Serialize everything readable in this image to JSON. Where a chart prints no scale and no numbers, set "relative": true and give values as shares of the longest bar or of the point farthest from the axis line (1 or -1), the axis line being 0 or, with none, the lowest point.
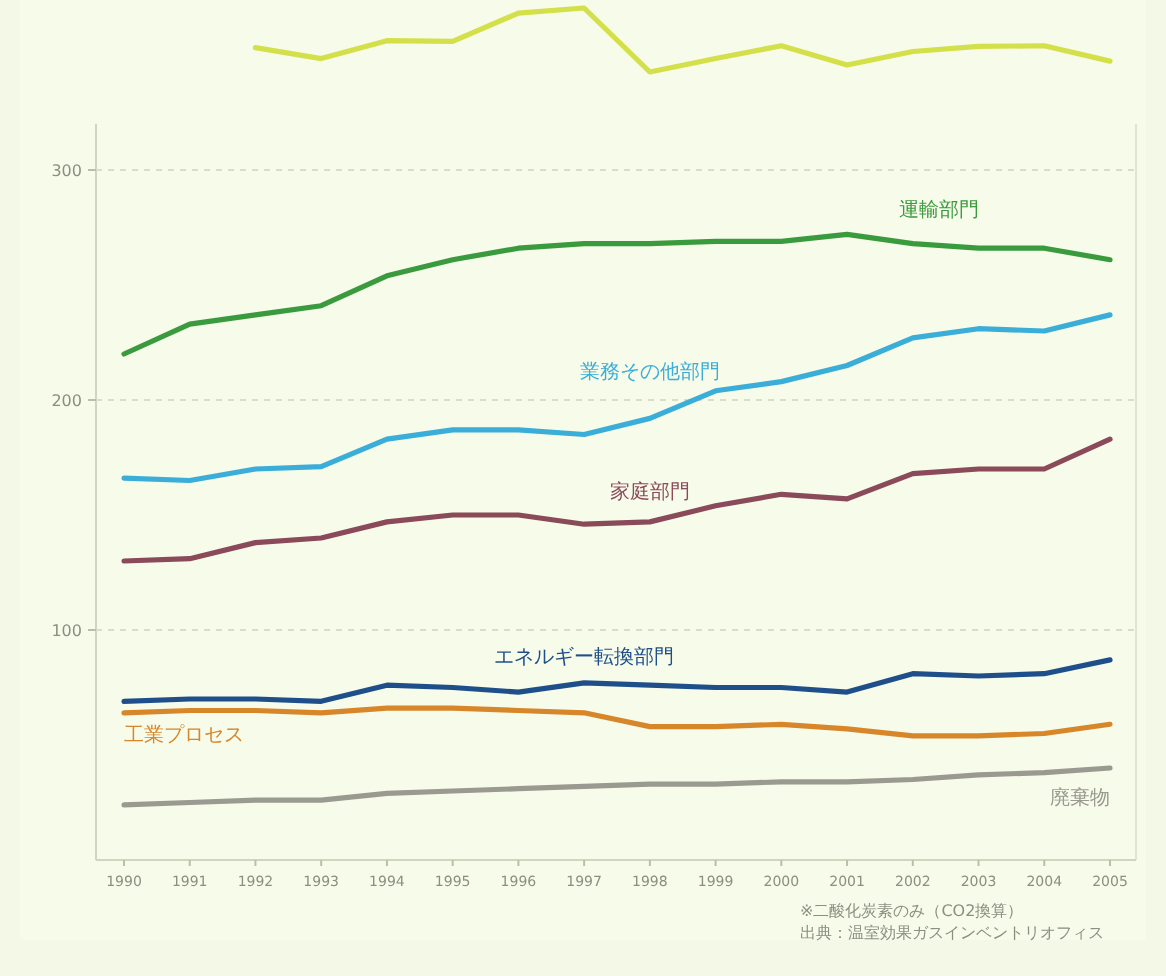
{
  "chart_data": [
    {
      "type": "line",
      "relative": true,
      "categories": [
        null,
        null,
        null,
        null,
        null,
        null,
        null,
        null,
        null,
        null,
        null,
        null,
        null,
        null
      ],
      "series": [
        {
          "color": "#d4e04a",
          "values": [
            0.38,
            0.21,
            0.49,
            0.48,
            0.92,
            1,
            0,
            0.21,
            0.41,
            0.11,
            0.32,
            0.4,
            0.41,
            0.17
          ]
        }
      ]
    },
    {
      "type": "line",
      "categories": [
        "1990",
        "1991",
        "1992",
        "1993",
        "1994",
        "1995",
        "1996",
        "1997",
        "1998",
        "1999",
        "2000",
        "2001",
        "2002",
        "2003",
        "2004",
        "2005"
      ],
      "ylim": [
        0,
        320
      ],
      "yticks": [
        100,
        200,
        300
      ],
      "grid": "y",
      "legend": false,
      "series": [
        {
          "name": "運輸部門",
          "color": "#3a9a3e",
          "values": [
            220,
            233,
            237,
            241,
            254,
            261,
            266,
            268,
            268,
            269,
            269,
            272,
            268,
            266,
            266,
            261
          ]
        },
        {
          "name": "業務その他部門",
          "color": "#3aaed8",
          "values": [
            166,
            165,
            170,
            171,
            183,
            187,
            187,
            185,
            192,
            204,
            208,
            215,
            227,
            231,
            230,
            237
          ]
        },
        {
          "name": "家庭部門",
          "color": "#8a4a5a",
          "values": [
            130,
            131,
            138,
            140,
            147,
            150,
            150,
            146,
            147,
            154,
            159,
            157,
            168,
            170,
            170,
            183
          ]
        },
        {
          "name": "エネルギー転換部門",
          "color": "#1f4f8a",
          "values": [
            69,
            70,
            70,
            69,
            76,
            75,
            73,
            77,
            76,
            75,
            75,
            73,
            81,
            80,
            81,
            87
          ]
        },
        {
          "name": "工業プロセス",
          "color": "#d8862a",
          "values": [
            64,
            65,
            65,
            64,
            66,
            66,
            65,
            64,
            58,
            58,
            59,
            57,
            54,
            54,
            55,
            59
          ]
        },
        {
          "name": "廃棄物",
          "color": "#9a9a90",
          "values": [
            24,
            25,
            26,
            26,
            29,
            30,
            31,
            32,
            33,
            33,
            34,
            34,
            35,
            37,
            38,
            40
          ]
        }
      ],
      "annotations": [
        "※二酸化炭素のみ（CO2換算）",
        "出典：温室効果ガスインベントリオフィス"
      ]
    }
  ]
}
